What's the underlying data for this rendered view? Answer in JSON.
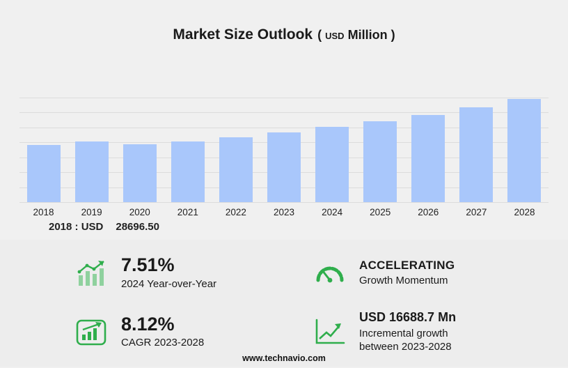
{
  "title": {
    "main": "Market Size Outlook",
    "paren_open": "(",
    "usd": "USD",
    "million": "Million",
    "paren_close": ")"
  },
  "chart_data": {
    "type": "bar",
    "title": "Market Size Outlook",
    "unit": "USD Million",
    "categories": [
      "2018",
      "2019",
      "2020",
      "2021",
      "2022",
      "2023",
      "2024",
      "2025",
      "2026",
      "2027",
      "2028"
    ],
    "values": [
      28696.5,
      30500,
      28900,
      30400,
      32500,
      35050,
      37680,
      40400,
      43700,
      47600,
      51740
    ],
    "labeled_point": {
      "category": "2018",
      "text": "2018 : USD 28696.50"
    },
    "ylim": [
      0,
      54000
    ],
    "grid": true,
    "legend": "none",
    "bar_color": "#a9c7fb"
  },
  "annotation": {
    "label": "2018 : USD",
    "value": "28696.50"
  },
  "stats": [
    {
      "icon": "bar-chart-growth-icon",
      "value": "7.51%",
      "label": "2024 Year-over-Year"
    },
    {
      "icon": "speedometer-icon",
      "value": "ACCELERATING",
      "label": "Growth Momentum"
    },
    {
      "icon": "cagr-chart-icon",
      "value": "8.12%",
      "label": "CAGR 2023-2028"
    },
    {
      "icon": "incremental-growth-icon",
      "value": "USD 16688.7 Mn",
      "label": "Incremental growth",
      "label2": "between 2023-2028"
    }
  ],
  "footer": "www.technavio.com",
  "colors": {
    "bar": "#a9c7fb",
    "green": "#2fae4c",
    "background": "#f0f0f0",
    "panel": "#ededed",
    "gridline": "#dcdcdc"
  }
}
